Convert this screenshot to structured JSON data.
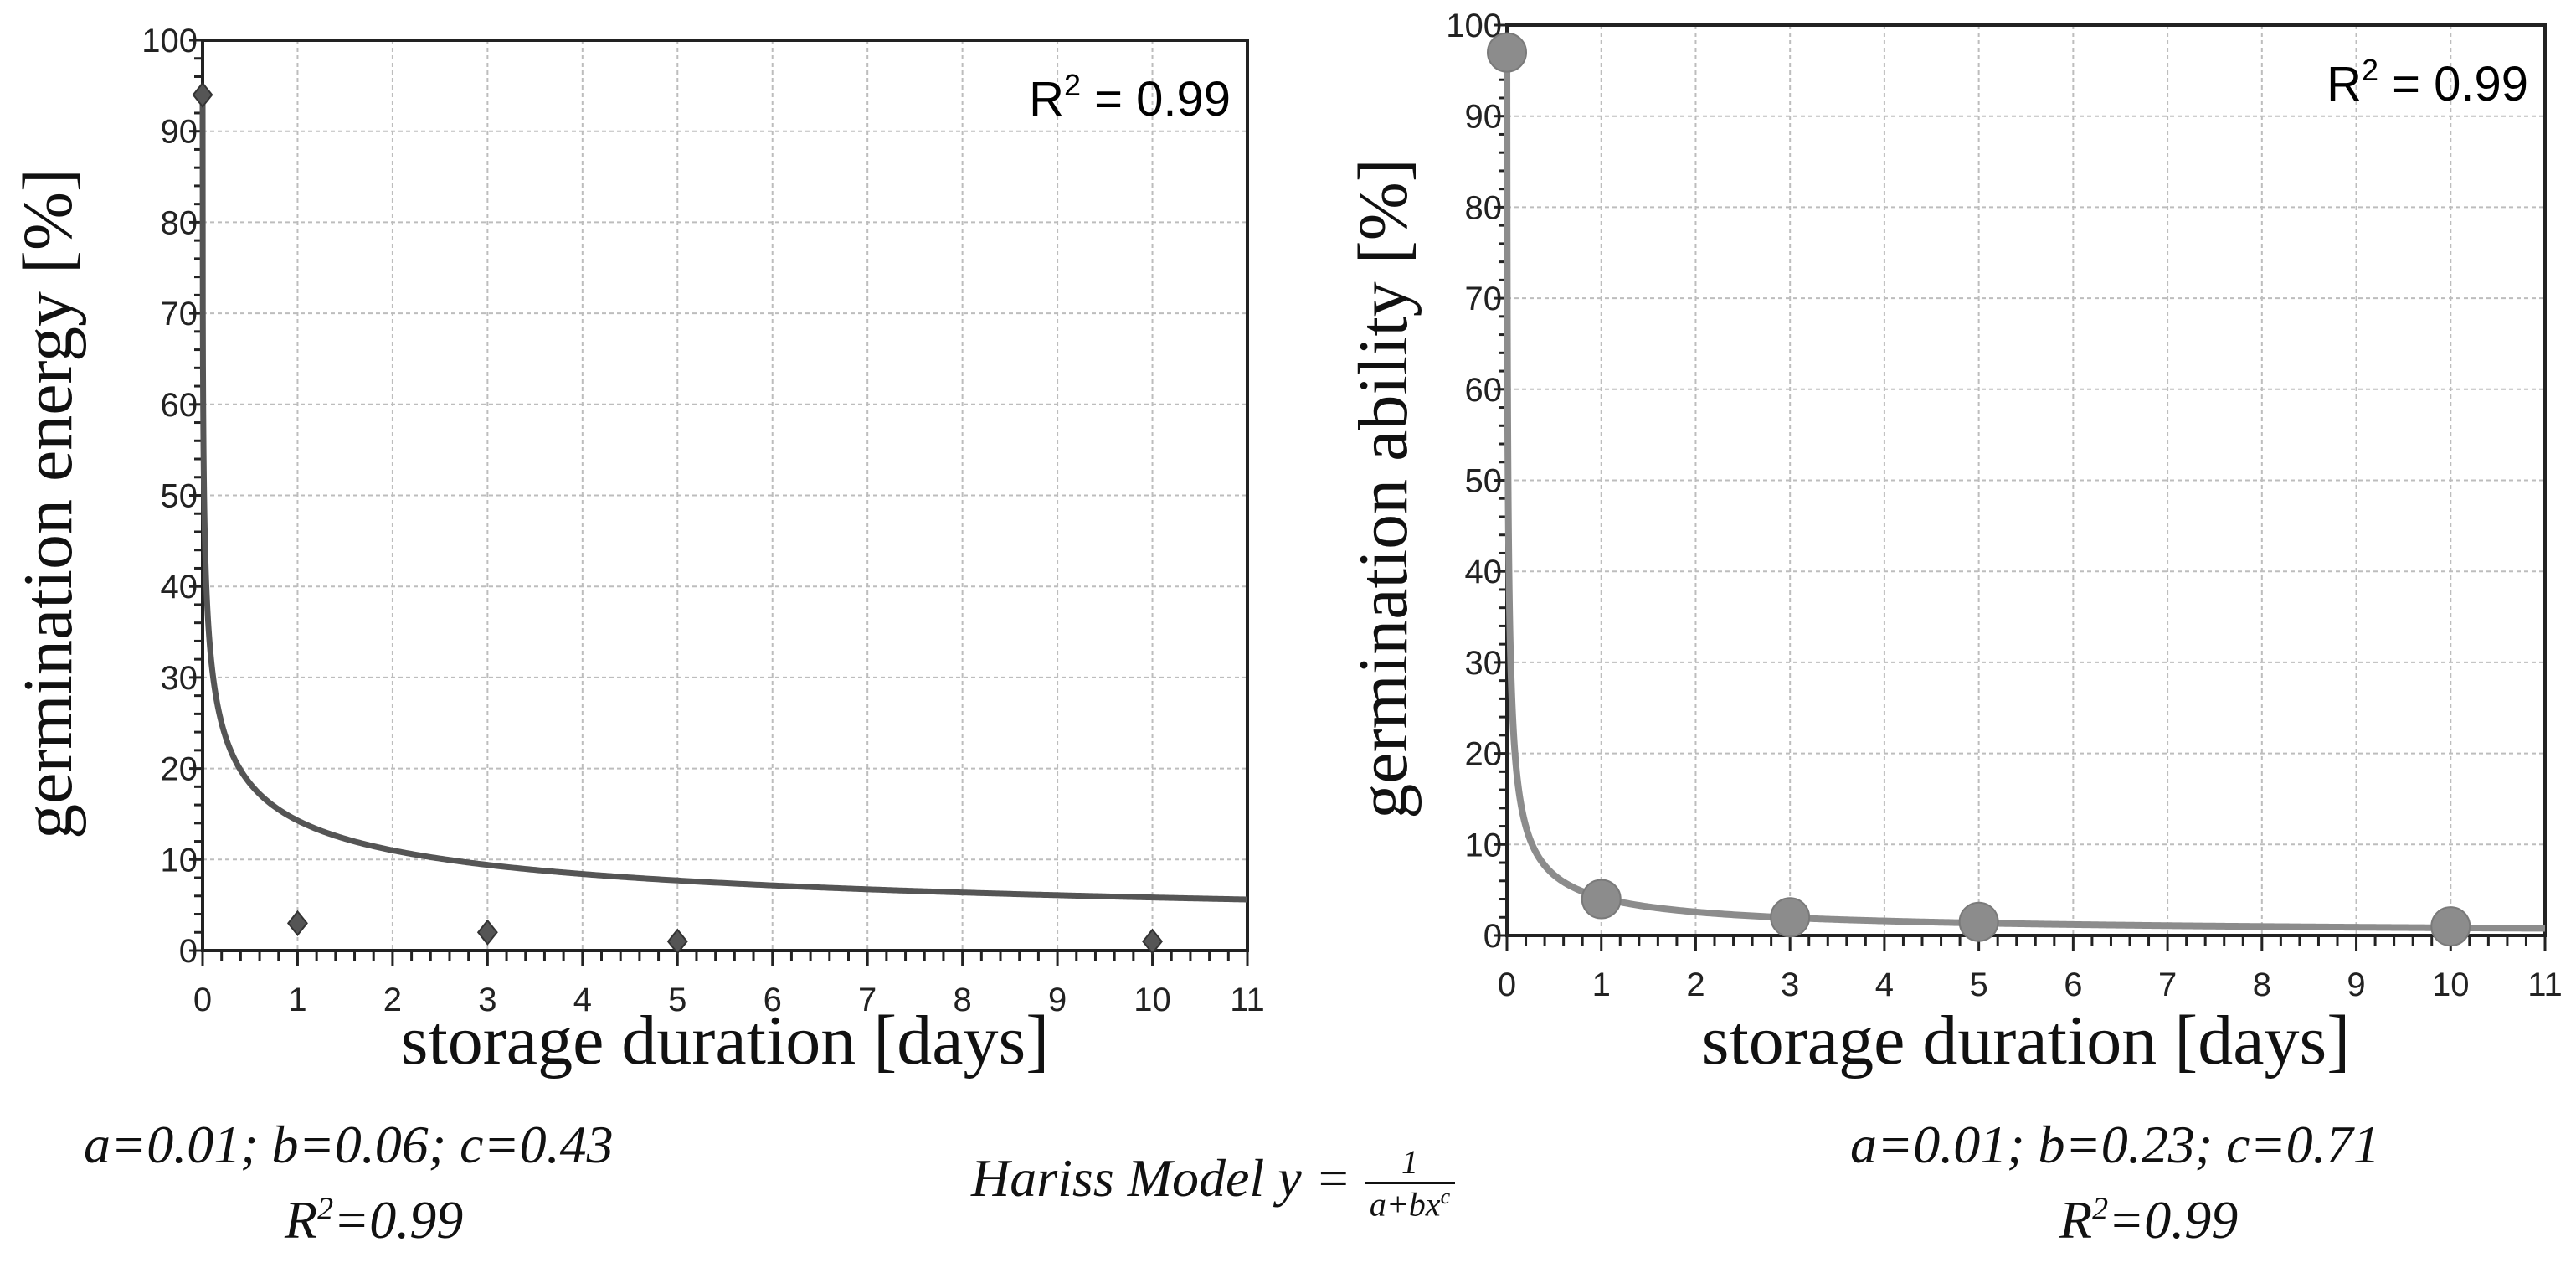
{
  "chart_data": [
    {
      "type": "line",
      "series": [
        {
          "marker": "diamond",
          "color": "#555555",
          "points": [
            [
              0,
              94
            ],
            [
              1,
              3
            ],
            [
              3,
              2
            ],
            [
              5,
              1
            ],
            [
              10,
              1
            ]
          ]
        }
      ],
      "fit_params": {
        "a": 0.01,
        "b": 0.06,
        "c": 0.43
      },
      "xlabel": "storage duration [days]",
      "ylabel": "germination energy [%]",
      "xlim": [
        0,
        11
      ],
      "ylim": [
        0,
        100
      ],
      "xticks": [
        "0",
        "1",
        "2",
        "3",
        "4",
        "5",
        "6",
        "7",
        "8",
        "9",
        "10",
        "11"
      ],
      "yticks": [
        "0",
        "10",
        "20",
        "30",
        "40",
        "50",
        "60",
        "70",
        "80",
        "90",
        "100"
      ],
      "grid": true,
      "r2_label": "= 0.99",
      "caption": {
        "params": "a=0.01; b=0.06; c=0.43",
        "r2": "=0.99"
      }
    },
    {
      "type": "line",
      "series": [
        {
          "marker": "circle",
          "color": "#8c8c8c",
          "points": [
            [
              0,
              97
            ],
            [
              1,
              4
            ],
            [
              3,
              2
            ],
            [
              5,
              1.5
            ],
            [
              10,
              1
            ]
          ]
        }
      ],
      "fit_params": {
        "a": 0.01,
        "b": 0.23,
        "c": 0.71
      },
      "xlabel": "storage duration [days]",
      "ylabel": "germination ability [%]",
      "xlim": [
        0,
        11
      ],
      "ylim": [
        0,
        100
      ],
      "xticks": [
        "0",
        "1",
        "2",
        "3",
        "4",
        "5",
        "6",
        "7",
        "8",
        "9",
        "10",
        "11"
      ],
      "yticks": [
        "0",
        "10",
        "20",
        "30",
        "40",
        "50",
        "60",
        "70",
        "80",
        "90",
        "100"
      ],
      "grid": true,
      "r2_label": "= 0.99",
      "caption": {
        "params": "a=0.01; b=0.23; c=0.71",
        "r2": "=0.99"
      }
    }
  ],
  "model": {
    "prefix": "Hariss Model",
    "lhs": "y =",
    "numerator": "1",
    "denominator_base": "a+bx",
    "denominator_exp": "c"
  }
}
